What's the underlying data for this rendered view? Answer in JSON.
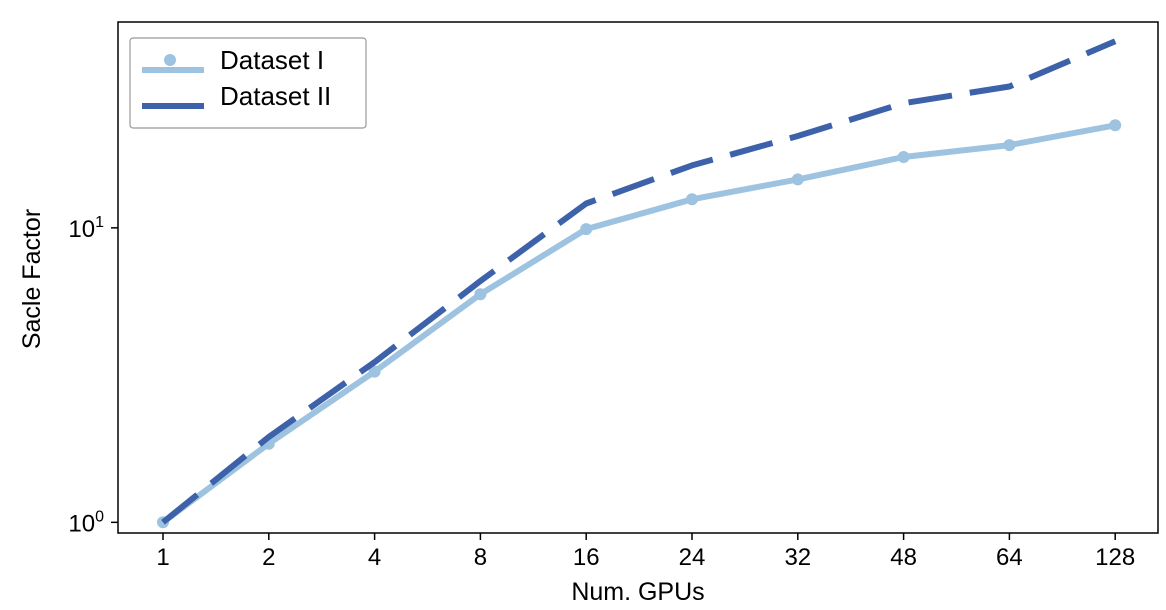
{
  "chart_data": {
    "type": "line",
    "xlabel": "Num. GPUs",
    "ylabel": "Sacle Factor",
    "yscale": "log",
    "ylim": [
      0.92,
      50
    ],
    "grid": false,
    "legend": {
      "placement": "top-left"
    },
    "categories": [
      "1",
      "2",
      "4",
      "8",
      "16",
      "24",
      "32",
      "48",
      "64",
      "128"
    ],
    "y_ticks": [
      {
        "value": 1,
        "base": "10",
        "exp": "0"
      },
      {
        "value": 10,
        "base": "10",
        "exp": "1"
      }
    ],
    "series": [
      {
        "name": "Dataset I",
        "color": "#9DC3E0",
        "style": "solid",
        "marker": "circle",
        "values": [
          1.0,
          1.85,
          3.25,
          5.95,
          9.9,
          12.5,
          14.6,
          17.4,
          19.1,
          22.3
        ]
      },
      {
        "name": "Dataset II",
        "color": "#3D62AA",
        "style": "dashed",
        "marker": "none",
        "values": [
          1.0,
          1.95,
          3.5,
          6.6,
          12.1,
          16.3,
          20.5,
          26.5,
          30.2,
          43.0
        ]
      }
    ]
  }
}
